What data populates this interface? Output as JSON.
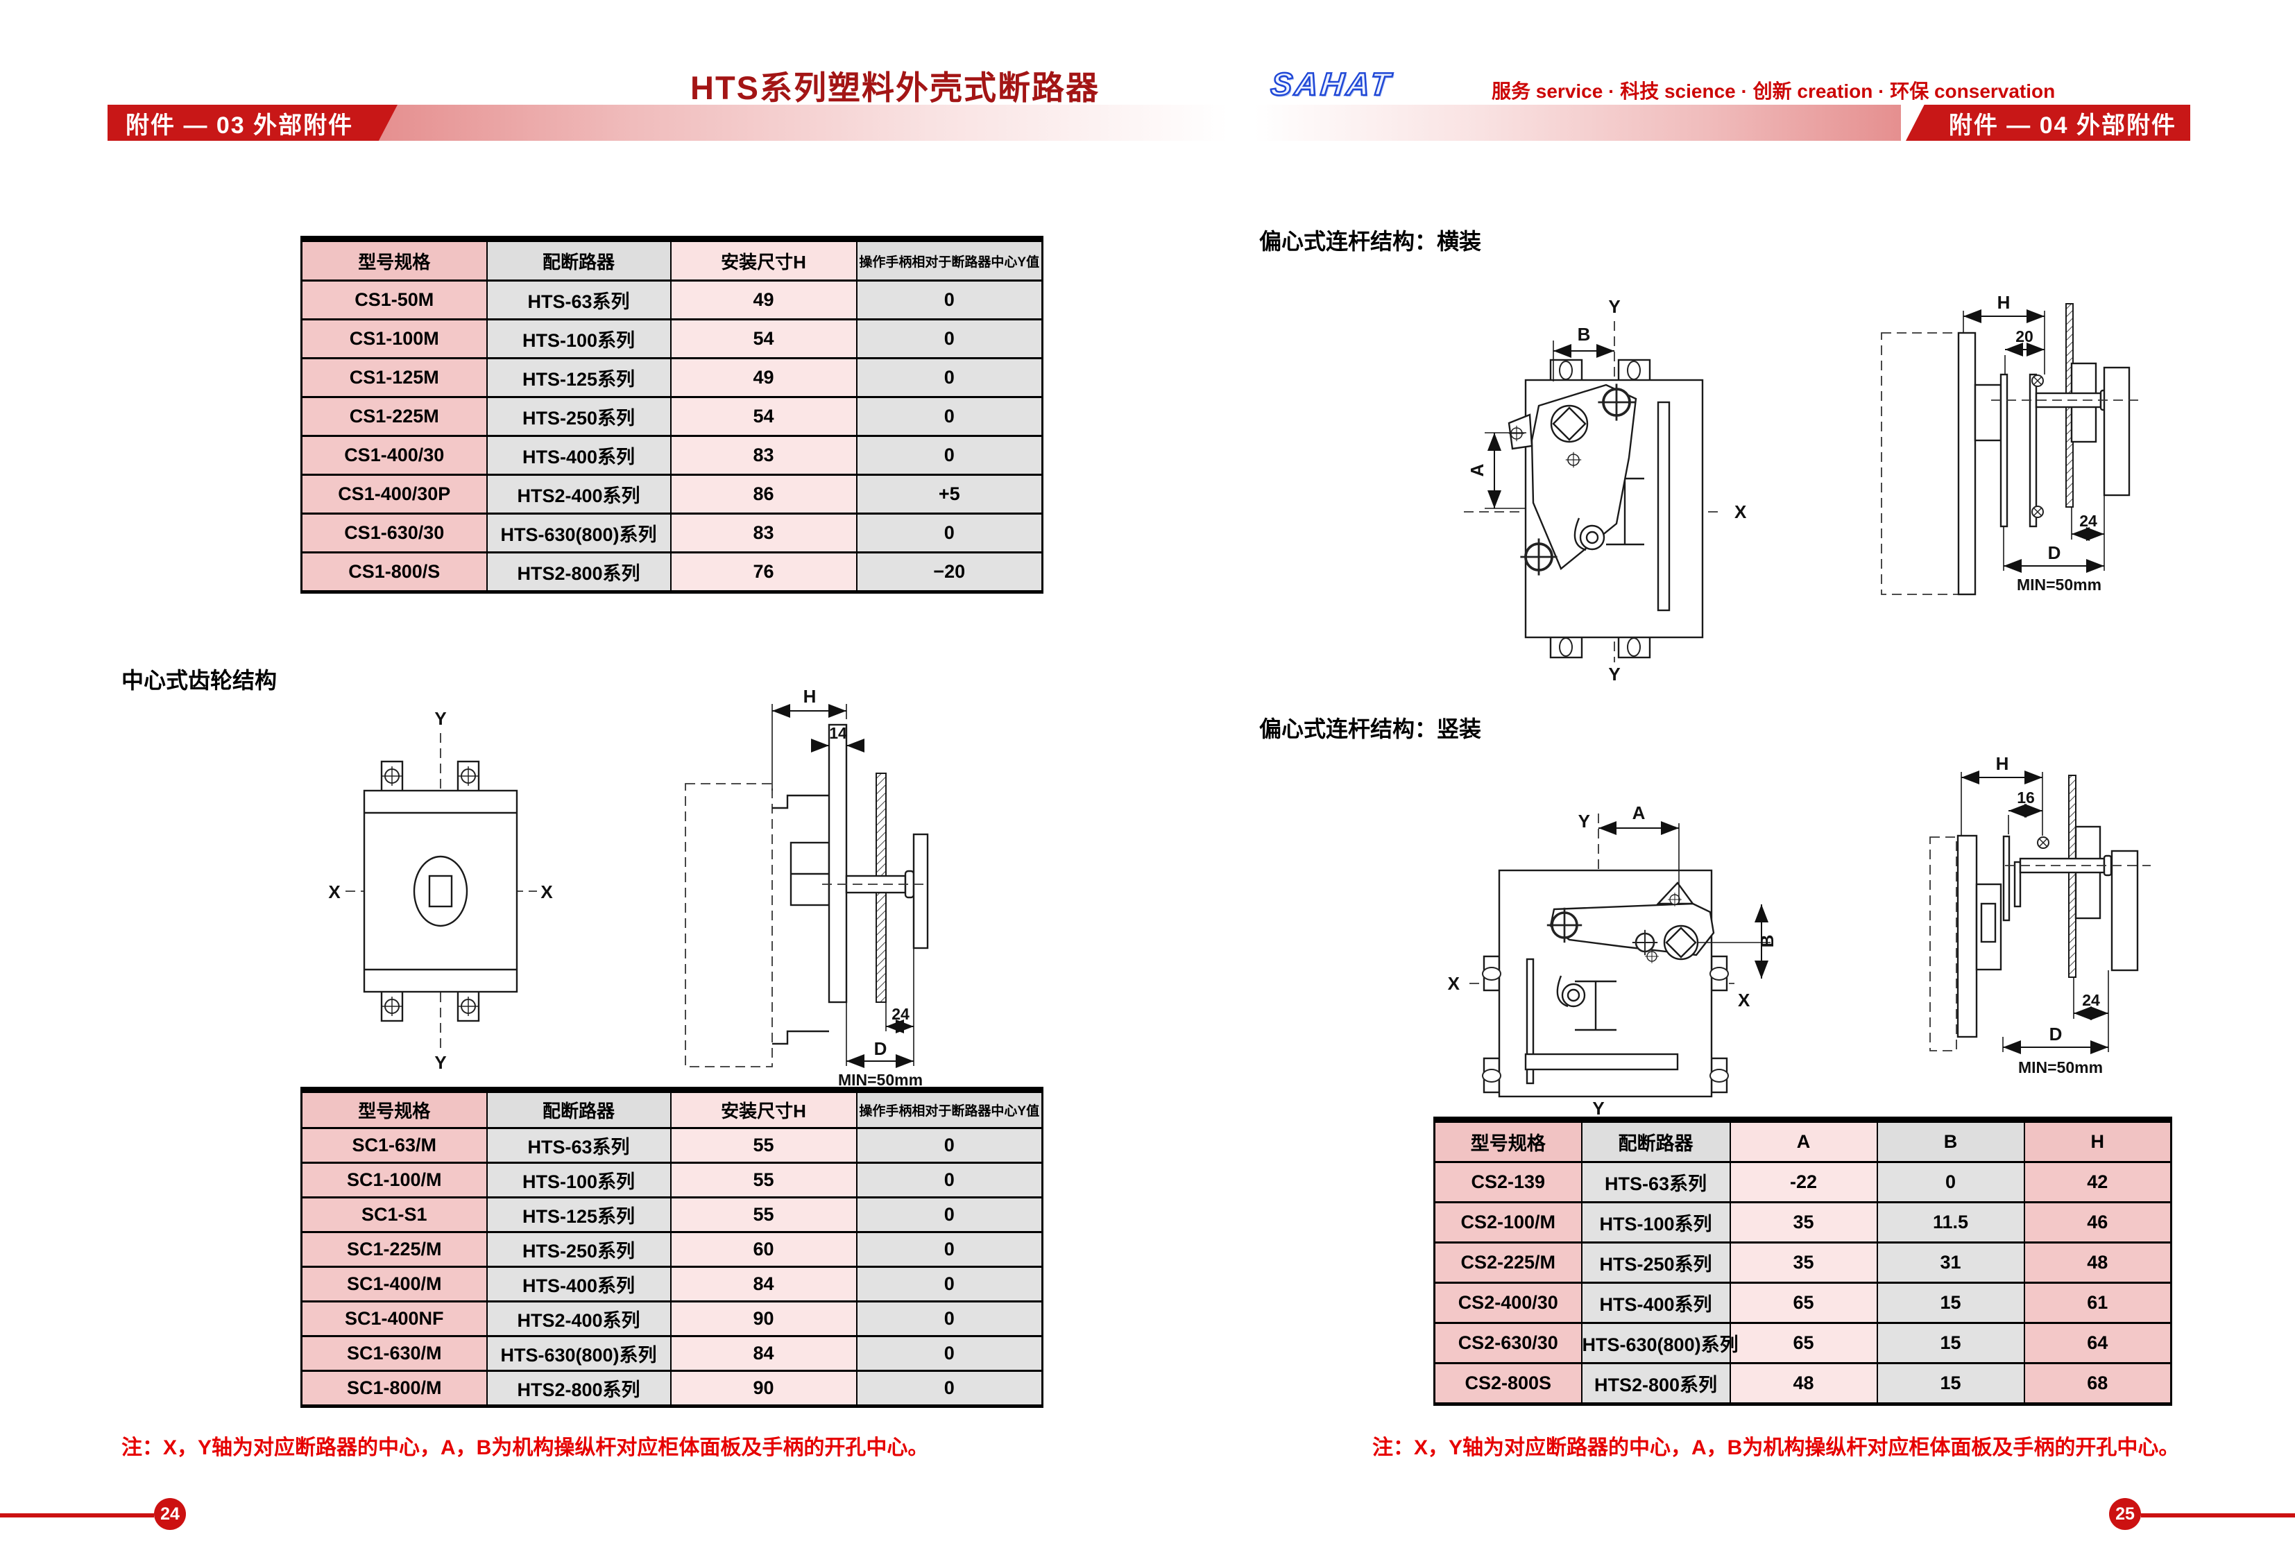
{
  "header": {
    "title": "HTS系列塑料外壳式断路器",
    "logo": "SAHAT",
    "slogan": "服务 service · 科技 science · 创新 creation · 环保 conservation",
    "left_tab": "附件 — 03 外部附件",
    "right_tab": "附件 — 04 外部附件"
  },
  "left_page": {
    "gear_section_label": "中心式齿轮结构",
    "table_gear_top": {
      "headers": [
        "型号规格",
        "配断路器",
        "安装尺寸H",
        "操作手柄相对于断路器中心Y值"
      ],
      "col_styles": [
        0,
        1,
        2,
        1
      ],
      "rows": [
        [
          "CS1-50M",
          "HTS-63系列",
          "49",
          "0"
        ],
        [
          "CS1-100M",
          "HTS-100系列",
          "54",
          "0"
        ],
        [
          "CS1-125M",
          "HTS-125系列",
          "49",
          "0"
        ],
        [
          "CS1-225M",
          "HTS-250系列",
          "54",
          "0"
        ],
        [
          "CS1-400/30",
          "HTS-400系列",
          "83",
          "0"
        ],
        [
          "CS1-400/30P",
          "HTS2-400系列",
          "86",
          "+5"
        ],
        [
          "CS1-630/30",
          "HTS-630(800)系列",
          "83",
          "0"
        ],
        [
          "CS1-800/S",
          "HTS2-800系列",
          "76",
          "−20"
        ]
      ]
    },
    "table_gear_bottom": {
      "headers": [
        "型号规格",
        "配断路器",
        "安装尺寸H",
        "操作手柄相对于断路器中心Y值"
      ],
      "col_styles": [
        0,
        1,
        2,
        1
      ],
      "rows": [
        [
          "SC1-63/M",
          "HTS-63系列",
          "55",
          "0"
        ],
        [
          "SC1-100/M",
          "HTS-100系列",
          "55",
          "0"
        ],
        [
          "SC1-S1",
          "HTS-125系列",
          "55",
          "0"
        ],
        [
          "SC1-225/M",
          "HTS-250系列",
          "60",
          "0"
        ],
        [
          "SC1-400/M",
          "HTS-400系列",
          "84",
          "0"
        ],
        [
          "SC1-400NF",
          "HTS2-400系列",
          "90",
          "0"
        ],
        [
          "SC1-630/M",
          "HTS-630(800)系列",
          "84",
          "0"
        ],
        [
          "SC1-800/M",
          "HTS2-800系列",
          "90",
          "0"
        ]
      ]
    },
    "note": "注：X，Y轴为对应断路器的中心，A，B为机构操纵杆对应柜体面板及手柄的开孔中心。"
  },
  "right_page": {
    "horizontal_label": "偏心式连杆结构：横装",
    "vertical_label": "偏心式连杆结构：竖装",
    "table_link": {
      "headers": [
        "型号规格",
        "配断路器",
        "A",
        "B",
        "H"
      ],
      "col_styles": [
        0,
        1,
        2,
        1,
        0
      ],
      "rows": [
        [
          "CS2-139",
          "HTS-63系列",
          "-22",
          "0",
          "42"
        ],
        [
          "CS2-100/M",
          "HTS-100系列",
          "35",
          "11.5",
          "46"
        ],
        [
          "CS2-225/M",
          "HTS-250系列",
          "35",
          "31",
          "48"
        ],
        [
          "CS2-400/30",
          "HTS-400系列",
          "65",
          "15",
          "61"
        ],
        [
          "CS2-630/30",
          "HTS-630(800)系列",
          "65",
          "15",
          "64"
        ],
        [
          "CS2-800S",
          "HTS2-800系列",
          "48",
          "15",
          "68"
        ]
      ]
    },
    "note": "注：X，Y轴为对应断路器的中心，A，B为机构操纵杆对应柜体面板及手柄的开孔中心。"
  },
  "diagrams": {
    "x_axis": "X",
    "y_axis": "Y",
    "dim_H": "H",
    "dim_D": "D",
    "dim_A": "A",
    "dim_B": "B",
    "min_clearance": "MIN=50mm",
    "center_plate_width": "14",
    "horiz_plate_width": "20",
    "vert_plate_width": "16",
    "handle_offset": "24"
  },
  "footer": {
    "left_page_number": "24",
    "right_page_number": "25"
  },
  "colors": {
    "accent_red": "#c81717",
    "title_red": "#a31515",
    "note_red": "#e60000",
    "logo_blue": "#1f47d6",
    "col_pink": "#f3c8c8",
    "col_grey": "#e2e2e2",
    "col_light_pink": "#fbe6e6"
  }
}
